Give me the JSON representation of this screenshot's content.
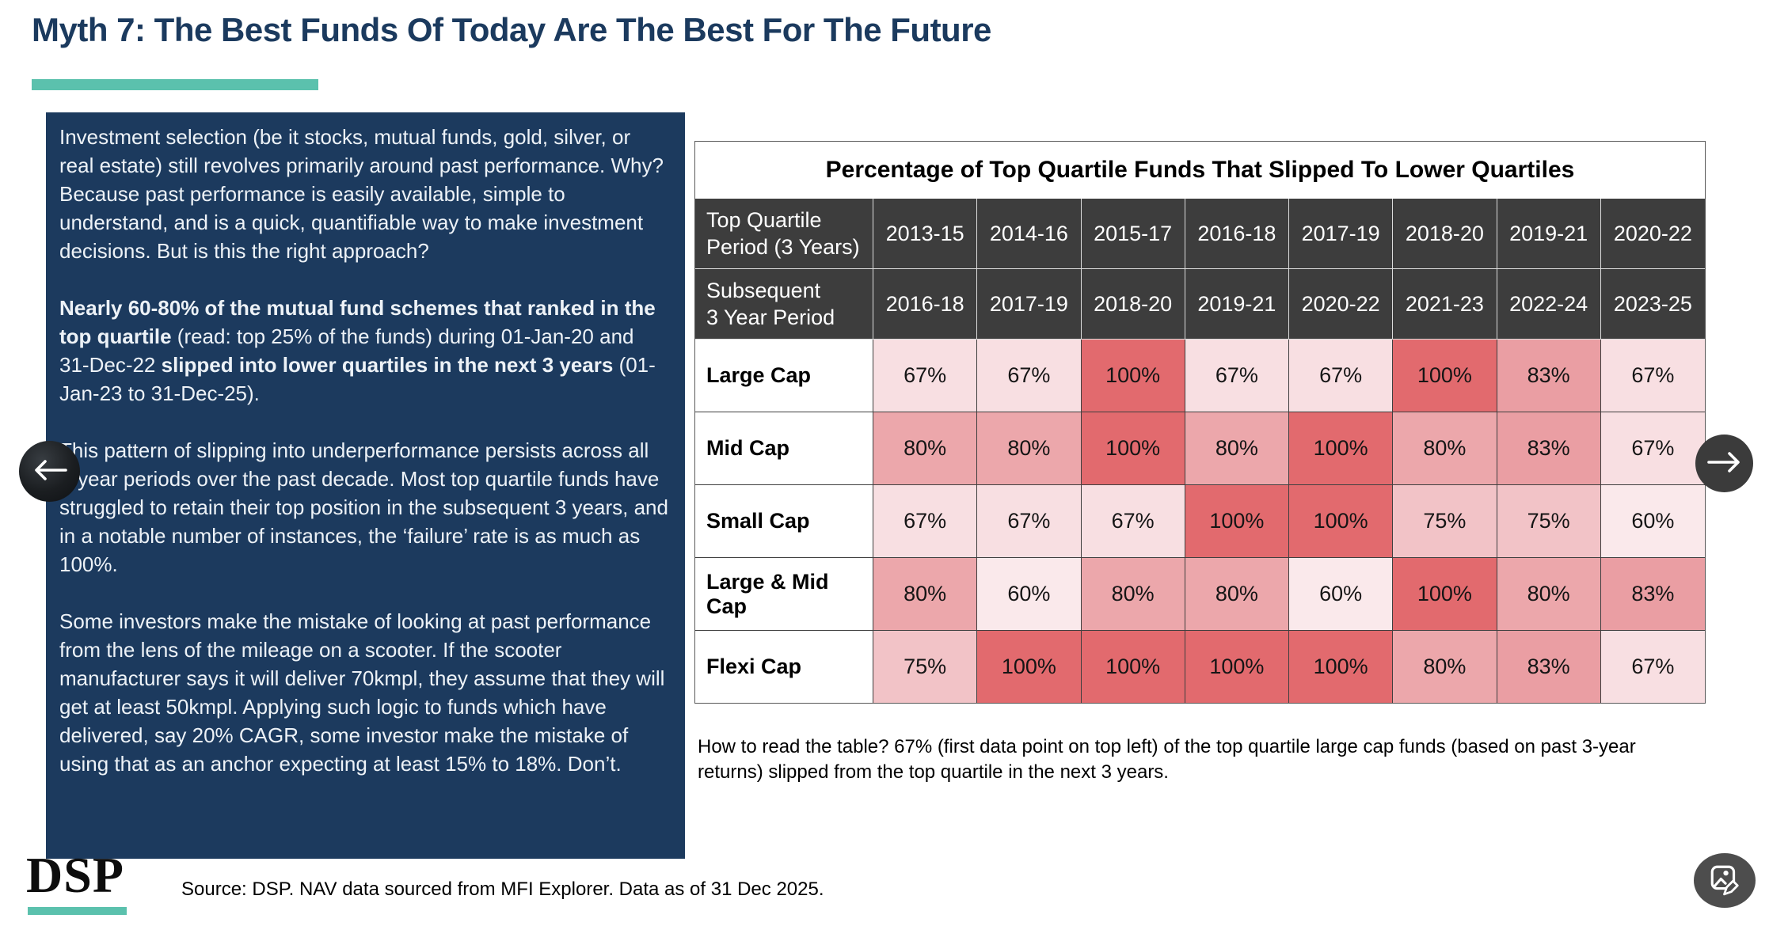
{
  "page": {
    "title": "Myth 7: The Best Funds Of Today Are The Best For The Future",
    "accent_color": "#5BC1AD",
    "panel_color": "#1C3A5E",
    "title_color": "#1B3A5E"
  },
  "intro": {
    "paragraphs": [
      {
        "segments": [
          {
            "text": "Investment selection (be it stocks, mutual funds, gold, silver, or real estate) still revolves primarily around past performance. Why? Because past performance is easily available, simple to understand, and is a quick, quantifiable way to make investment decisions. But is this the right approach?",
            "bold": false
          }
        ]
      },
      {
        "segments": [
          {
            "text": "Nearly 60-80% of the mutual fund schemes that ranked in the top quartile ",
            "bold": true
          },
          {
            "text": "(read: top 25% of the funds) during 01-Jan-20 and 31-Dec-22 ",
            "bold": false
          },
          {
            "text": "slipped into lower quartiles in the next 3 years ",
            "bold": true
          },
          {
            "text": "(01-Jan-23 to 31-Dec-25).",
            "bold": false
          }
        ]
      },
      {
        "segments": [
          {
            "text": "This pattern of slipping into underperformance persists across all 3-year periods over the past decade. Most top quartile funds have struggled to retain their top position in the subsequent 3 years, and in a notable number of instances, the ‘failure’ rate is as much as 100%.",
            "bold": false
          }
        ]
      },
      {
        "segments": [
          {
            "text": "Some investors make the mistake of looking at past performance from the lens of the mileage on a scooter. If the scooter manufacturer says it will deliver 70kmpl, they assume that they will get at least 50kmpl. Applying such logic to funds which have delivered, say 20% CAGR, some investor make the mistake of using that as an anchor expecting at least 15% to 18%. Don’t.",
            "bold": false
          }
        ]
      }
    ]
  },
  "table": {
    "title": "Percentage of Top Quartile Funds That Slipped To Lower Quartiles",
    "header_bg": "#3D3D3D",
    "header_rows": [
      {
        "label": "Top Quartile\nPeriod (3 Years)",
        "cols": [
          "2013-15",
          "2014-16",
          "2015-17",
          "2016-18",
          "2017-19",
          "2018-20",
          "2019-21",
          "2020-22"
        ]
      },
      {
        "label": "Subsequent\n3 Year Period",
        "cols": [
          "2016-18",
          "2017-19",
          "2018-20",
          "2019-21",
          "2020-22",
          "2021-23",
          "2022-24",
          "2023-25"
        ]
      }
    ],
    "rows": [
      {
        "label": "Large Cap",
        "values": [
          67,
          67,
          100,
          67,
          67,
          100,
          83,
          67
        ]
      },
      {
        "label": "Mid Cap",
        "values": [
          80,
          80,
          100,
          80,
          100,
          80,
          83,
          67
        ]
      },
      {
        "label": "Small Cap",
        "values": [
          67,
          67,
          67,
          100,
          100,
          75,
          75,
          60
        ]
      },
      {
        "label": "Large & Mid Cap",
        "values": [
          80,
          60,
          80,
          80,
          60,
          100,
          80,
          83
        ]
      },
      {
        "label": "Flexi Cap",
        "values": [
          75,
          100,
          100,
          100,
          100,
          80,
          83,
          67
        ]
      }
    ],
    "value_suffix": "%",
    "value_colors": {
      "60": "#FAE9EB",
      "67": "#F8DFE2",
      "75": "#F2C3C7",
      "80": "#ECA7AB",
      "83": "#EA9EA3",
      "100": "#E26A6E"
    }
  },
  "how_to_read": "How to read the table? 67% (first data point on top left) of the top quartile large cap funds (based on past 3-year returns) slipped from the top quartile in the next 3 years.",
  "footer": {
    "logo_text": "DSP",
    "source": "Source: DSP. NAV data sourced from MFI Explorer. Data as of 31 Dec 2025."
  },
  "nav": {
    "icons": {
      "prev": "arrow-left-icon",
      "next": "arrow-right-icon",
      "corner": "image-edit-icon"
    }
  }
}
